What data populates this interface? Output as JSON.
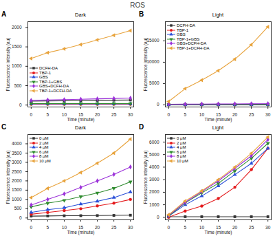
{
  "title": "ROS",
  "chart_data": [
    {
      "panel": "A",
      "title": "Dark",
      "type": "line",
      "x_label": "Time (minute)",
      "y_label": "Fluorescence intensity (au)",
      "x": [
        0,
        5,
        10,
        15,
        20,
        25,
        30
      ],
      "xlim": [
        -1,
        31
      ],
      "xticks": [
        0,
        5,
        10,
        15,
        20,
        25,
        30
      ],
      "ylim": [
        -50,
        2150
      ],
      "yticks": [
        0,
        500,
        1000,
        1500,
        2000
      ],
      "legend": "lower left",
      "series": [
        {
          "name": "DCFH-DA",
          "color": "#333333",
          "marker": "square",
          "values": [
            100,
            105,
            110,
            115,
            120,
            125,
            130
          ]
        },
        {
          "name": "TBP-1",
          "color": "#e41a1c",
          "marker": "circle",
          "values": [
            20,
            20,
            20,
            20,
            20,
            20,
            20
          ]
        },
        {
          "name": "GBS",
          "color": "#2a4fd8",
          "marker": "triangle",
          "values": [
            30,
            30,
            30,
            30,
            30,
            30,
            30
          ]
        },
        {
          "name": "TBP-1+GBS",
          "color": "#2e8b2e",
          "marker": "triangle-down",
          "values": [
            40,
            40,
            40,
            40,
            40,
            40,
            40
          ]
        },
        {
          "name": "GBS+DCFH-DA",
          "color": "#9b30d9",
          "marker": "diamond",
          "values": [
            120,
            130,
            140,
            150,
            160,
            170,
            180
          ]
        },
        {
          "name": "TBP-1+DCFH-DA",
          "color": "#e8a33c",
          "marker": "triangle-left",
          "values": [
            1200,
            1350,
            1450,
            1560,
            1680,
            1800,
            1920
          ]
        }
      ]
    },
    {
      "panel": "B",
      "title": "Light",
      "type": "line",
      "x_label": "Time (minute)",
      "y_label": "Fluorescence intensity (au)",
      "x": [
        0,
        5,
        10,
        15,
        20,
        25,
        30
      ],
      "xlim": [
        -1,
        31
      ],
      "xticks": [
        0,
        5,
        10,
        15,
        20,
        25,
        30
      ],
      "ylim": [
        -500,
        19500
      ],
      "yticks": [
        0,
        5000,
        10000,
        15000
      ],
      "legend": "upper left",
      "series": [
        {
          "name": "DCFH-DA",
          "color": "#333333",
          "marker": "square",
          "values": [
            100,
            110,
            120,
            130,
            140,
            150,
            160
          ]
        },
        {
          "name": "TBP-1",
          "color": "#e41a1c",
          "marker": "circle",
          "values": [
            20,
            20,
            20,
            20,
            20,
            20,
            20
          ]
        },
        {
          "name": "GBS",
          "color": "#2a4fd8",
          "marker": "triangle",
          "values": [
            30,
            30,
            30,
            30,
            30,
            30,
            30
          ]
        },
        {
          "name": "TBP-1+GBS",
          "color": "#2e8b2e",
          "marker": "triangle-down",
          "values": [
            40,
            40,
            40,
            40,
            40,
            40,
            40
          ]
        },
        {
          "name": "GBS+DCFH-DA",
          "color": "#9b30d9",
          "marker": "diamond",
          "values": [
            150,
            170,
            190,
            210,
            230,
            250,
            270
          ]
        },
        {
          "name": "TBP-1+DCFH-DA",
          "color": "#e8a33c",
          "marker": "triangle-left",
          "values": [
            800,
            3800,
            5800,
            8000,
            10700,
            14100,
            18300
          ]
        }
      ]
    },
    {
      "panel": "C",
      "title": "Dark",
      "type": "line",
      "x_label": "Time (minute)",
      "y_label": "Fluorescence intensity (au)",
      "x": [
        0,
        5,
        10,
        15,
        20,
        25,
        30
      ],
      "xlim": [
        -1,
        31
      ],
      "xticks": [
        0,
        5,
        10,
        15,
        20,
        25,
        30
      ],
      "ylim": [
        -100,
        4500
      ],
      "yticks": [
        0,
        500,
        1000,
        1500,
        2000,
        2500,
        3000,
        3500,
        4000
      ],
      "legend": "upper left",
      "series": [
        {
          "name": "0 μM",
          "color": "#333333",
          "marker": "square",
          "values": [
            100,
            110,
            120,
            125,
            130,
            140,
            150
          ]
        },
        {
          "name": "2 μM",
          "color": "#e41a1c",
          "marker": "circle",
          "values": [
            200,
            300,
            400,
            500,
            650,
            800,
            1000
          ]
        },
        {
          "name": "4 μM",
          "color": "#2a4fd8",
          "marker": "triangle",
          "values": [
            300,
            450,
            550,
            750,
            900,
            1100,
            1400
          ]
        },
        {
          "name": "6 μM",
          "color": "#2e8b2e",
          "marker": "triangle-down",
          "values": [
            600,
            800,
            950,
            1150,
            1350,
            1600,
            1950
          ]
        },
        {
          "name": "8 μM",
          "color": "#9b30d9",
          "marker": "diamond",
          "values": [
            700,
            1000,
            1300,
            1650,
            2000,
            2350,
            2750
          ]
        },
        {
          "name": "10 μM",
          "color": "#e8a33c",
          "marker": "triangle-left",
          "values": [
            1100,
            1600,
            2000,
            2450,
            2950,
            3500,
            4250
          ]
        }
      ]
    },
    {
      "panel": "D",
      "title": "Light",
      "type": "line",
      "x_label": "Time (minute)",
      "y_label": "Fluorescence intensity (au)",
      "x": [
        0,
        5,
        10,
        15,
        20,
        25,
        30
      ],
      "xlim": [
        -1,
        31
      ],
      "xticks": [
        0,
        5,
        10,
        15,
        20,
        25,
        30
      ],
      "ylim": [
        -200,
        6600
      ],
      "yticks": [
        0,
        1000,
        2000,
        3000,
        4000,
        5000,
        6000
      ],
      "legend": "upper left",
      "series": [
        {
          "name": "0 μM",
          "color": "#333333",
          "marker": "square",
          "values": [
            50,
            50,
            50,
            50,
            50,
            50,
            50
          ]
        },
        {
          "name": "2 μM",
          "color": "#e41a1c",
          "marker": "circle",
          "values": [
            0,
            500,
            900,
            1500,
            2400,
            3800,
            5500
          ]
        },
        {
          "name": "4 μM",
          "color": "#2a4fd8",
          "marker": "triangle",
          "values": [
            100,
            1000,
            1700,
            2500,
            3400,
            4300,
            5500
          ]
        },
        {
          "name": "6 μM",
          "color": "#2e8b2e",
          "marker": "triangle-down",
          "values": [
            100,
            1150,
            1950,
            2700,
            3700,
            4700,
            5900
          ]
        },
        {
          "name": "8 μM",
          "color": "#9b30d9",
          "marker": "diamond",
          "values": [
            150,
            1200,
            2050,
            2900,
            3900,
            4900,
            6200
          ]
        },
        {
          "name": "10 μM",
          "color": "#e8a33c",
          "marker": "triangle-left",
          "values": [
            200,
            1300,
            2100,
            3000,
            4000,
            5100,
            6400
          ]
        }
      ]
    }
  ]
}
